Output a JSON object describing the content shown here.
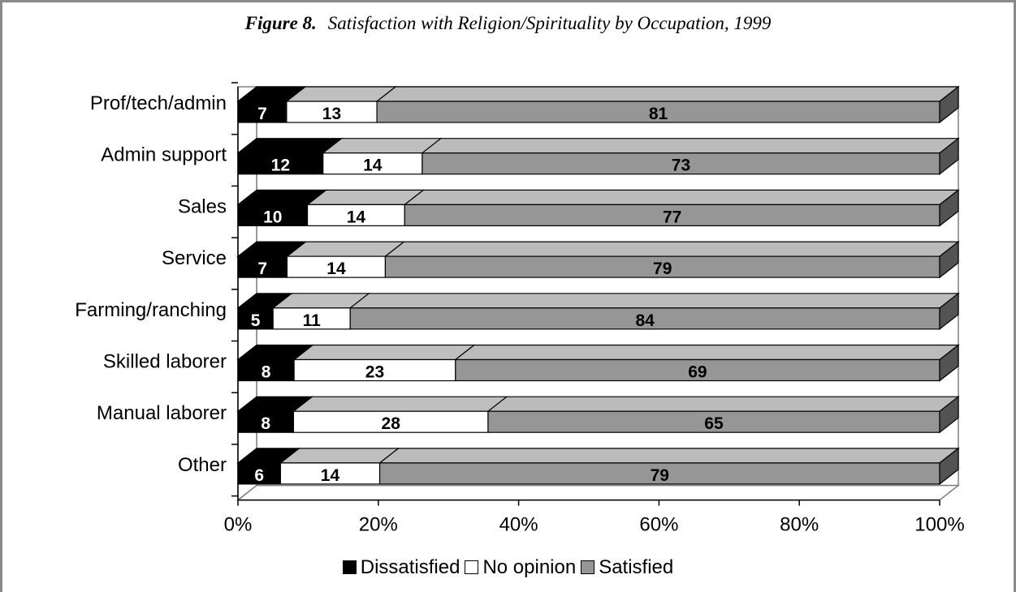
{
  "figure_label": "Figure 8.",
  "chart_data": {
    "type": "bar",
    "orientation": "horizontal",
    "stacked": "percent",
    "title": "Satisfaction with Religion/Spirituality by Occupation, 1999",
    "categories": [
      "Prof/tech/admin",
      "Admin support",
      "Sales",
      "Service",
      "Farming/ranching",
      "Skilled laborer",
      "Manual laborer",
      "Other"
    ],
    "series": [
      {
        "name": "Dissatisfied",
        "values": [
          7,
          12,
          10,
          7,
          5,
          8,
          8,
          6
        ],
        "color": "#000000",
        "label_color": "#ffffff"
      },
      {
        "name": "No opinion",
        "values": [
          13,
          14,
          14,
          14,
          11,
          23,
          28,
          14
        ],
        "color": "#ffffff",
        "label_color": "#000000"
      },
      {
        "name": "Satisfied",
        "values": [
          81,
          73,
          77,
          79,
          84,
          69,
          65,
          79
        ],
        "color": "#969696",
        "label_color": "#000000"
      }
    ],
    "x_ticks": [
      "0%",
      "20%",
      "40%",
      "60%",
      "80%",
      "100%"
    ],
    "xlim": [
      0,
      100
    ],
    "legend_position": "bottom",
    "three_d": true
  }
}
